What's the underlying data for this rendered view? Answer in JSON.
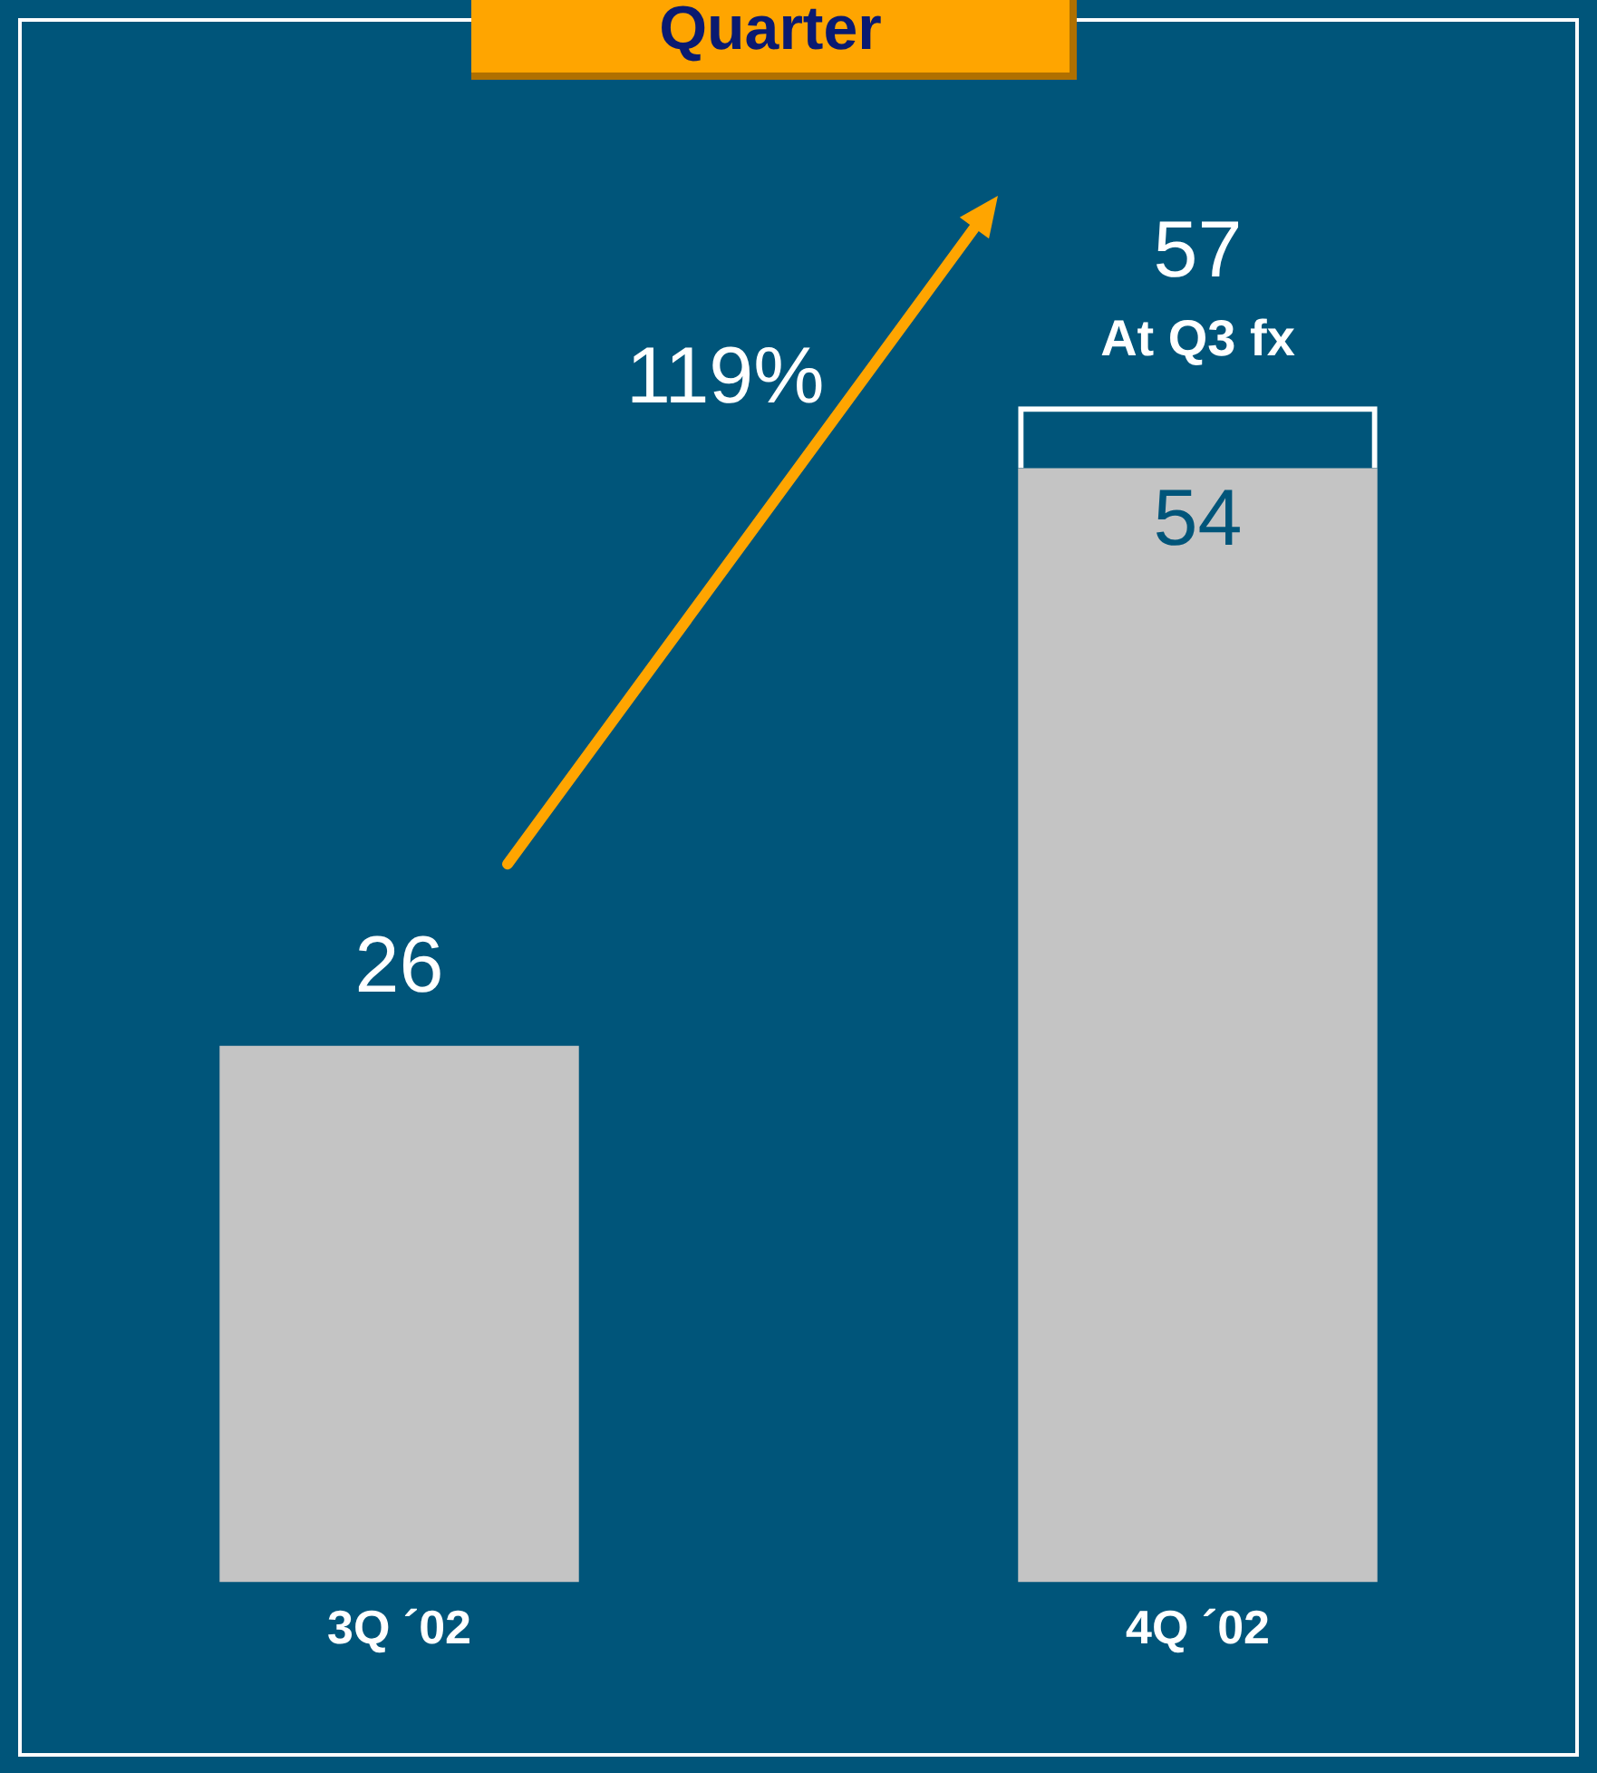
{
  "chart_data": {
    "type": "bar",
    "title": "Quarter",
    "categories": [
      "3Q ´02",
      "4Q ´02"
    ],
    "series": [
      {
        "color": "#c4c4c4",
        "values": [
          26,
          54
        ],
        "value_labels": [
          "26",
          "54"
        ]
      },
      {
        "color": "#ffffff",
        "values": [
          null,
          3
        ]
      }
    ],
    "stacked": true,
    "totals": [
      null,
      "57"
    ],
    "legend": false,
    "grid": false,
    "tick_labels": "x",
    "annotations": [
      {
        "text": "At Q3 fx",
        "x": "4Q ´02",
        "y": 57
      },
      "119%"
    ]
  }
}
